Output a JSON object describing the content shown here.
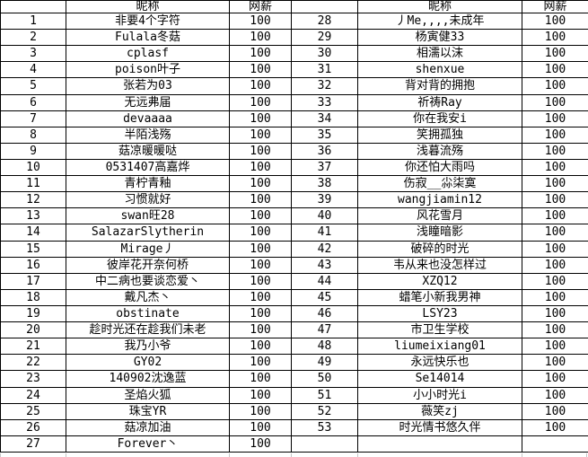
{
  "page": {
    "background_color": "#ffffff",
    "border_color": "#000000",
    "text_color": "#000000"
  },
  "header": {
    "index_label": "",
    "nickname_label": "昵称",
    "salary_label": "网薪"
  },
  "left_table": {
    "rows": [
      {
        "index": "1",
        "nickname": "非要4个字符",
        "salary": "100"
      },
      {
        "index": "2",
        "nickname": "Fulala冬菇",
        "salary": "100"
      },
      {
        "index": "3",
        "nickname": "cplasf",
        "salary": "100"
      },
      {
        "index": "4",
        "nickname": "poison叶子",
        "salary": "100"
      },
      {
        "index": "5",
        "nickname": "张若为03",
        "salary": "100"
      },
      {
        "index": "6",
        "nickname": "无远弗届",
        "salary": "100"
      },
      {
        "index": "7",
        "nickname": "devaaaa",
        "salary": "100"
      },
      {
        "index": "8",
        "nickname": "半陌浅殇",
        "salary": "100"
      },
      {
        "index": "9",
        "nickname": "菇凉暖暖哒",
        "salary": "100"
      },
      {
        "index": "10",
        "nickname": "0531407高嘉烨",
        "salary": "100"
      },
      {
        "index": "11",
        "nickname": "青柠青釉",
        "salary": "100"
      },
      {
        "index": "12",
        "nickname": "习惯就好",
        "salary": "100"
      },
      {
        "index": "13",
        "nickname": "swan旺28",
        "salary": "100"
      },
      {
        "index": "14",
        "nickname": "SalazarSlytherin",
        "salary": "100"
      },
      {
        "index": "15",
        "nickname": "Mirage丿",
        "salary": "100"
      },
      {
        "index": "16",
        "nickname": "彼岸花开奈何桥",
        "salary": "100"
      },
      {
        "index": "17",
        "nickname": "中二病也要谈恋爱丶",
        "salary": "100"
      },
      {
        "index": "18",
        "nickname": "戴凡杰丶",
        "salary": "100"
      },
      {
        "index": "19",
        "nickname": "obstinate",
        "salary": "100"
      },
      {
        "index": "20",
        "nickname": "趁时光还在趁我们未老",
        "salary": "100"
      },
      {
        "index": "21",
        "nickname": "我乃小爷",
        "salary": "100"
      },
      {
        "index": "22",
        "nickname": "GY02",
        "salary": "100"
      },
      {
        "index": "23",
        "nickname": "140902沈逸蓝",
        "salary": "100"
      },
      {
        "index": "24",
        "nickname": "圣焰火狐",
        "salary": "100"
      },
      {
        "index": "25",
        "nickname": "珠宝YR",
        "salary": "100"
      },
      {
        "index": "26",
        "nickname": "菇凉加油",
        "salary": "100"
      },
      {
        "index": "27",
        "nickname": "Forever丶",
        "salary": "100"
      }
    ]
  },
  "right_table": {
    "rows": [
      {
        "index": "28",
        "nickname": "丿Me,,,,未成年",
        "salary": "100"
      },
      {
        "index": "29",
        "nickname": "杨寅健33",
        "salary": "100"
      },
      {
        "index": "30",
        "nickname": "相濡以沫",
        "salary": "100"
      },
      {
        "index": "31",
        "nickname": "shenxue",
        "salary": "100"
      },
      {
        "index": "32",
        "nickname": "背对背的拥抱",
        "salary": "100"
      },
      {
        "index": "33",
        "nickname": "祈祷Ray",
        "salary": "100"
      },
      {
        "index": "34",
        "nickname": "你在我安i",
        "salary": "100"
      },
      {
        "index": "35",
        "nickname": "笑拥孤独",
        "salary": "100"
      },
      {
        "index": "36",
        "nickname": "浅暮流殇",
        "salary": "100"
      },
      {
        "index": "37",
        "nickname": "你还怕大雨吗",
        "salary": "100"
      },
      {
        "index": "38",
        "nickname": "伤寂__尛柒寞",
        "salary": "100"
      },
      {
        "index": "39",
        "nickname": "wangjiamin12",
        "salary": "100"
      },
      {
        "index": "40",
        "nickname": "风花雪月",
        "salary": "100"
      },
      {
        "index": "41",
        "nickname": "浅瞳暗影",
        "salary": "100"
      },
      {
        "index": "42",
        "nickname": "破碎的时光",
        "salary": "100"
      },
      {
        "index": "43",
        "nickname": "韦从来也没怎样过",
        "salary": "100"
      },
      {
        "index": "44",
        "nickname": "XZQ12",
        "salary": "100"
      },
      {
        "index": "45",
        "nickname": "蜡笔小新我男神",
        "salary": "100"
      },
      {
        "index": "46",
        "nickname": "LSY23",
        "salary": "100"
      },
      {
        "index": "47",
        "nickname": "市卫生学校",
        "salary": "100"
      },
      {
        "index": "48",
        "nickname": "liumeixiang01",
        "salary": "100"
      },
      {
        "index": "49",
        "nickname": "永远快乐也",
        "salary": "100"
      },
      {
        "index": "50",
        "nickname": "Se14014",
        "salary": "100"
      },
      {
        "index": "51",
        "nickname": "小小时光i",
        "salary": "100"
      },
      {
        "index": "52",
        "nickname": "薇笑zj",
        "salary": "100"
      },
      {
        "index": "53",
        "nickname": "时光情书悠久伴",
        "salary": "100"
      }
    ]
  }
}
